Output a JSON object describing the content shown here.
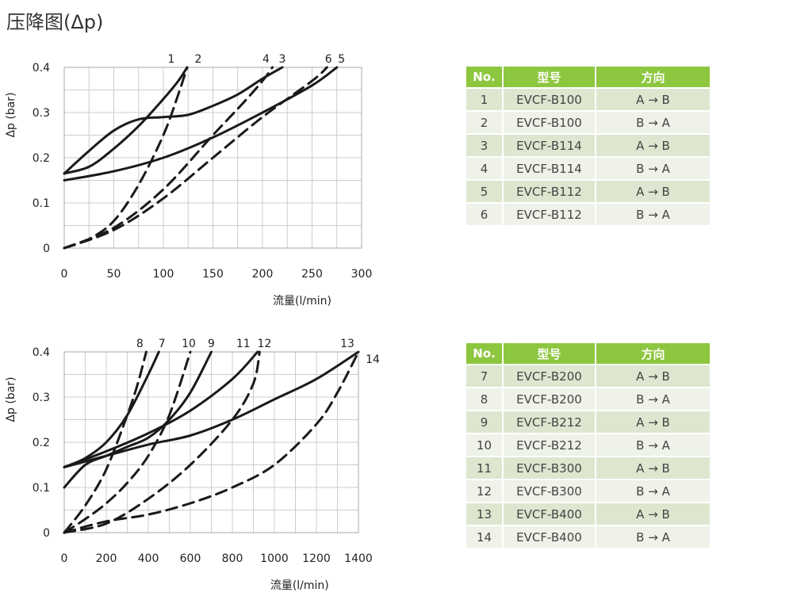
{
  "page_title": "压降图(Δp)",
  "colors": {
    "curve": "#1a1a1a",
    "grid": "#cccccc",
    "header_bg": "#8dc63f",
    "row_odd": "#dde7cf",
    "row_even": "#eef2e8"
  },
  "chart_data": [
    {
      "type": "line",
      "xlabel": "流量(l/min)",
      "ylabel": "Δp (bar)",
      "xlim": [
        0,
        300
      ],
      "ylim": [
        0,
        0.4
      ],
      "xticks": [
        "0",
        "50",
        "100",
        "150",
        "200",
        "250",
        "300"
      ],
      "yticks": [
        "0",
        "0.1",
        "0.2",
        "0.3",
        "0.4"
      ],
      "grid": true,
      "series": [
        {
          "name": "1",
          "dashed": false,
          "x": [
            0,
            25,
            50,
            75,
            100,
            115,
            124
          ],
          "y": [
            0.165,
            0.18,
            0.22,
            0.27,
            0.33,
            0.37,
            0.4
          ]
        },
        {
          "name": "2",
          "dashed": true,
          "x": [
            0,
            25,
            50,
            75,
            100,
            115,
            124
          ],
          "y": [
            0.0,
            0.02,
            0.06,
            0.14,
            0.25,
            0.34,
            0.4
          ]
        },
        {
          "name": "3",
          "dashed": false,
          "x": [
            0,
            25,
            50,
            75,
            100,
            125,
            150,
            175,
            200,
            220
          ],
          "y": [
            0.165,
            0.215,
            0.26,
            0.285,
            0.29,
            0.295,
            0.315,
            0.34,
            0.375,
            0.4
          ]
        },
        {
          "name": "4",
          "dashed": true,
          "x": [
            0,
            50,
            100,
            150,
            180,
            200,
            210
          ],
          "y": [
            0.0,
            0.045,
            0.13,
            0.25,
            0.32,
            0.37,
            0.4
          ]
        },
        {
          "name": "5",
          "dashed": false,
          "x": [
            0,
            50,
            100,
            150,
            200,
            250,
            275
          ],
          "y": [
            0.15,
            0.17,
            0.2,
            0.245,
            0.3,
            0.36,
            0.4
          ]
        },
        {
          "name": "6",
          "dashed": true,
          "x": [
            0,
            50,
            100,
            150,
            200,
            250,
            265
          ],
          "y": [
            0.0,
            0.04,
            0.11,
            0.2,
            0.29,
            0.37,
            0.4
          ]
        }
      ]
    },
    {
      "type": "line",
      "xlabel": "流量(l/min)",
      "ylabel": "Δp (bar)",
      "xlim": [
        0,
        1400
      ],
      "ylim": [
        0,
        0.4
      ],
      "xticks": [
        "0",
        "200",
        "400",
        "600",
        "800",
        "1000",
        "1200",
        "1400"
      ],
      "yticks": [
        "0",
        "0.1",
        "0.2",
        "0.3",
        "0.4"
      ],
      "grid": true,
      "series": [
        {
          "name": "7",
          "dashed": false,
          "x": [
            0,
            100,
            200,
            300,
            400,
            450
          ],
          "y": [
            0.145,
            0.165,
            0.2,
            0.26,
            0.35,
            0.4
          ]
        },
        {
          "name": "8",
          "dashed": true,
          "x": [
            0,
            100,
            200,
            300,
            350,
            390
          ],
          "y": [
            0.0,
            0.06,
            0.14,
            0.26,
            0.33,
            0.4
          ]
        },
        {
          "name": "9",
          "dashed": false,
          "x": [
            0,
            100,
            200,
            300,
            400,
            500,
            600,
            700
          ],
          "y": [
            0.1,
            0.15,
            0.17,
            0.19,
            0.21,
            0.25,
            0.31,
            0.4
          ]
        },
        {
          "name": "10",
          "dashed": true,
          "x": [
            0,
            100,
            200,
            300,
            400,
            500,
            600
          ],
          "y": [
            0.0,
            0.03,
            0.065,
            0.11,
            0.17,
            0.26,
            0.4
          ]
        },
        {
          "name": "11",
          "dashed": false,
          "x": [
            0,
            200,
            400,
            600,
            800,
            920
          ],
          "y": [
            0.145,
            0.18,
            0.22,
            0.27,
            0.34,
            0.4
          ]
        },
        {
          "name": "12",
          "dashed": true,
          "x": [
            0,
            200,
            400,
            600,
            800,
            900,
            930
          ],
          "y": [
            0.0,
            0.02,
            0.075,
            0.15,
            0.25,
            0.33,
            0.4
          ]
        },
        {
          "name": "13",
          "dashed": false,
          "x": [
            0,
            200,
            400,
            600,
            800,
            1000,
            1200,
            1400
          ],
          "y": [
            0.145,
            0.17,
            0.195,
            0.215,
            0.25,
            0.295,
            0.34,
            0.4
          ]
        },
        {
          "name": "14",
          "dashed": true,
          "x": [
            0,
            200,
            400,
            600,
            800,
            1000,
            1200,
            1300,
            1400
          ],
          "y": [
            0.0,
            0.025,
            0.04,
            0.065,
            0.1,
            0.15,
            0.24,
            0.31,
            0.4
          ]
        }
      ]
    }
  ],
  "tables": [
    {
      "headers": [
        "No.",
        "型号",
        "方向"
      ],
      "rows": [
        [
          "1",
          "EVCF-B100",
          "A → B"
        ],
        [
          "2",
          "EVCF-B100",
          "B → A"
        ],
        [
          "3",
          "EVCF-B114",
          "A → B"
        ],
        [
          "4",
          "EVCF-B114",
          "B → A"
        ],
        [
          "5",
          "EVCF-B112",
          "A → B"
        ],
        [
          "6",
          "EVCF-B112",
          "B → A"
        ]
      ]
    },
    {
      "headers": [
        "No.",
        "型号",
        "方向"
      ],
      "rows": [
        [
          "7",
          "EVCF-B200",
          "A → B"
        ],
        [
          "8",
          "EVCF-B200",
          "B → A"
        ],
        [
          "9",
          "EVCF-B212",
          "A → B"
        ],
        [
          "10",
          "EVCF-B212",
          "B → A"
        ],
        [
          "11",
          "EVCF-B300",
          "A → B"
        ],
        [
          "12",
          "EVCF-B300",
          "B → A"
        ],
        [
          "13",
          "EVCF-B400",
          "A → B"
        ],
        [
          "14",
          "EVCF-B400",
          "B → A"
        ]
      ]
    }
  ]
}
